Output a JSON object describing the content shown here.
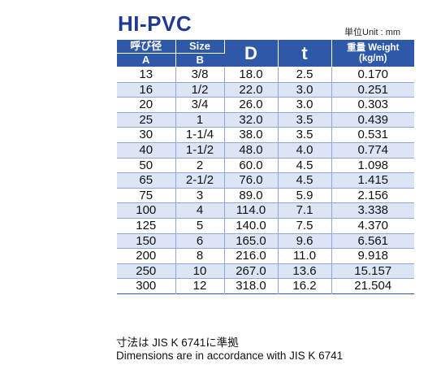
{
  "title": "HI-PVC",
  "unit_note": "単位Unit : mm",
  "headers": {
    "col_a_jp": "呼び径",
    "col_a": "A",
    "col_b_en": "Size",
    "col_b": "B",
    "col_d": "D",
    "col_t": "t",
    "col_weight_1": "重量 Weight",
    "col_weight_2": "(kg/m)"
  },
  "rows": [
    {
      "a": "13",
      "b": "3/8",
      "d": "18.0",
      "t": "2.5",
      "w": "0.170"
    },
    {
      "a": "16",
      "b": "1/2",
      "d": "22.0",
      "t": "3.0",
      "w": "0.251"
    },
    {
      "a": "20",
      "b": "3/4",
      "d": "26.0",
      "t": "3.0",
      "w": "0.303"
    },
    {
      "a": "25",
      "b": "1",
      "d": "32.0",
      "t": "3.5",
      "w": "0.439"
    },
    {
      "a": "30",
      "b": "1-1/4",
      "d": "38.0",
      "t": "3.5",
      "w": "0.531"
    },
    {
      "a": "40",
      "b": "1-1/2",
      "d": "48.0",
      "t": "4.0",
      "w": "0.774"
    },
    {
      "a": "50",
      "b": "2",
      "d": "60.0",
      "t": "4.5",
      "w": "1.098"
    },
    {
      "a": "65",
      "b": "2-1/2",
      "d": "76.0",
      "t": "4.5",
      "w": "1.415"
    },
    {
      "a": "75",
      "b": "3",
      "d": "89.0",
      "t": "5.9",
      "w": "2.156"
    },
    {
      "a": "100",
      "b": "4",
      "d": "114.0",
      "t": "7.1",
      "w": "3.338"
    },
    {
      "a": "125",
      "b": "5",
      "d": "140.0",
      "t": "7.5",
      "w": "4.370"
    },
    {
      "a": "150",
      "b": "6",
      "d": "165.0",
      "t": "9.6",
      "w": "6.561"
    },
    {
      "a": "200",
      "b": "8",
      "d": "216.0",
      "t": "11.0",
      "w": "9.918"
    },
    {
      "a": "250",
      "b": "10",
      "d": "267.0",
      "t": "13.6",
      "w": "15.157"
    },
    {
      "a": "300",
      "b": "12",
      "d": "318.0",
      "t": "16.2",
      "w": "21.504"
    }
  ],
  "notes": {
    "line1": "寸法は JIS K 6741に準拠",
    "line2": "Dimensions are in accordance with JIS K 6741"
  },
  "colors": {
    "title": "#1f3a8f",
    "header_bg": "#2e58a8",
    "stripe": "#dbe5f6"
  }
}
